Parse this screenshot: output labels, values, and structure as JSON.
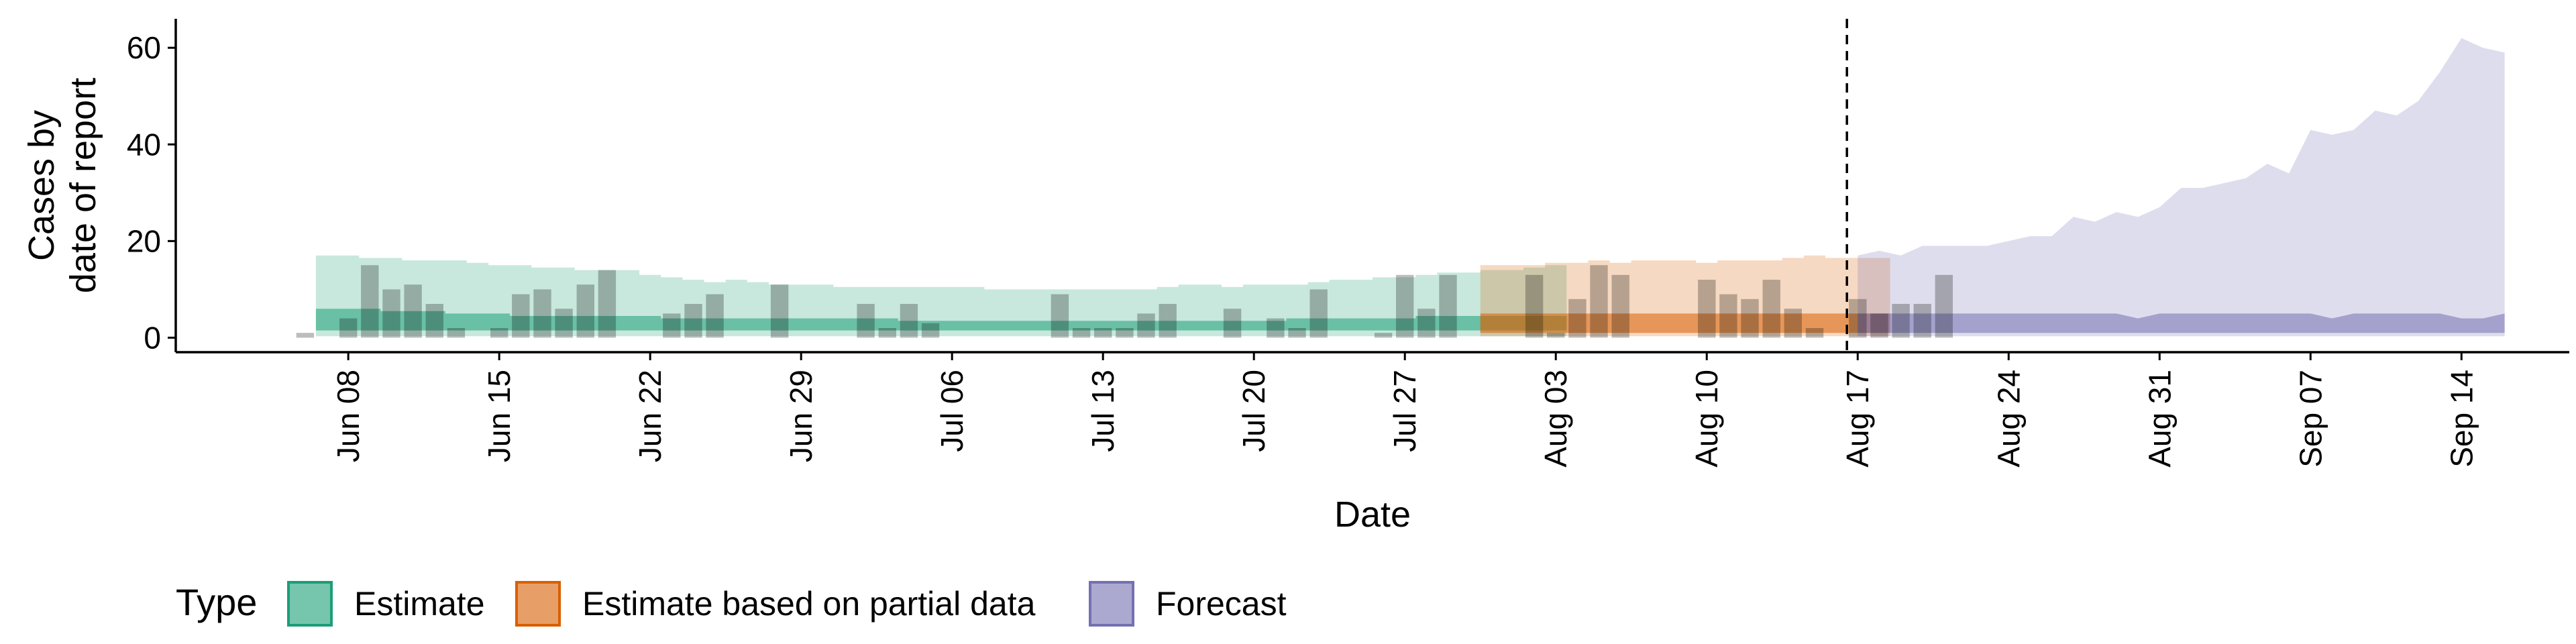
{
  "chart_data": {
    "type": "area",
    "xlabel": "Date",
    "ylabel_lines": [
      "Cases by",
      "date of report"
    ],
    "y_ticks": [
      0,
      20,
      40,
      60
    ],
    "ylim": [
      -3,
      66
    ],
    "xlim": [
      "2020-05-31",
      "2020-09-19"
    ],
    "x_ticks": [
      {
        "date": "2020-06-08",
        "label": "Jun 08"
      },
      {
        "date": "2020-06-15",
        "label": "Jun 15"
      },
      {
        "date": "2020-06-22",
        "label": "Jun 22"
      },
      {
        "date": "2020-06-29",
        "label": "Jun 29"
      },
      {
        "date": "2020-07-06",
        "label": "Jul 06"
      },
      {
        "date": "2020-07-13",
        "label": "Jul 13"
      },
      {
        "date": "2020-07-20",
        "label": "Jul 20"
      },
      {
        "date": "2020-07-27",
        "label": "Jul 27"
      },
      {
        "date": "2020-08-03",
        "label": "Aug 03"
      },
      {
        "date": "2020-08-10",
        "label": "Aug 10"
      },
      {
        "date": "2020-08-17",
        "label": "Aug 17"
      },
      {
        "date": "2020-08-24",
        "label": "Aug 24"
      },
      {
        "date": "2020-08-31",
        "label": "Aug 31"
      },
      {
        "date": "2020-09-07",
        "label": "Sep 07"
      },
      {
        "date": "2020-09-14",
        "label": "Sep 14"
      }
    ],
    "forecast_start_line": "2020-08-16",
    "grid": false,
    "legend": {
      "title": "Type",
      "position": "bottom",
      "entries": [
        {
          "label": "Estimate",
          "fill": "#1b9e77",
          "stroke": "#1b9e77"
        },
        {
          "label": "Estimate based on partial data",
          "fill": "#d95f02",
          "stroke": "#d95f02"
        },
        {
          "label": "Forecast",
          "fill": "#7570b3",
          "stroke": "#7570b3"
        }
      ]
    },
    "reported_cases": {
      "start_date": "2020-06-06",
      "values": [
        1,
        0,
        4,
        15,
        10,
        11,
        7,
        2,
        0,
        2,
        9,
        10,
        6,
        11,
        14,
        0,
        0,
        5,
        7,
        9,
        0,
        0,
        11,
        0,
        0,
        0,
        7,
        2,
        7,
        3,
        0,
        0,
        0,
        0,
        0,
        9,
        2,
        2,
        2,
        5,
        7,
        0,
        0,
        6,
        0,
        4,
        2,
        10,
        0,
        0,
        1,
        13,
        6,
        13,
        0,
        0,
        0,
        13,
        1,
        8,
        15,
        13,
        0,
        0,
        0,
        12,
        9,
        8,
        12,
        6,
        2,
        0,
        8,
        5,
        7,
        7,
        13
      ]
    },
    "series": [
      {
        "name": "Estimate",
        "color": "#1b9e77",
        "start_date": "2020-06-07",
        "upper_90": [
          17,
          17,
          16.5,
          16.5,
          16,
          16,
          16,
          15.5,
          15,
          15,
          14.5,
          14.5,
          14,
          14,
          14,
          13,
          12.5,
          12,
          11.5,
          12,
          11.5,
          11,
          11,
          11,
          10.5,
          10.5,
          10.5,
          10.5,
          10.5,
          10.5,
          10.5,
          10,
          10,
          10,
          10,
          10,
          10,
          10,
          10,
          10.5,
          11,
          11,
          10.5,
          11,
          11,
          11,
          11.5,
          12,
          12,
          12.5,
          12.5,
          13,
          13.5,
          13.5,
          14,
          14,
          14.5,
          15
        ],
        "lower_90": [
          0.3,
          0.3,
          0.3,
          0.3,
          0.3,
          0.3,
          0.3,
          0.3,
          0.3,
          0.3,
          0.3,
          0.3,
          0.3,
          0.3,
          0.3,
          0.3,
          0.3,
          0.3,
          0.3,
          0.3,
          0.3,
          0.3,
          0.3,
          0.3,
          0.3,
          0.3,
          0.3,
          0.3,
          0.3,
          0.3,
          0.3,
          0.3,
          0.3,
          0.3,
          0.3,
          0.3,
          0.3,
          0.3,
          0.3,
          0.3,
          0.3,
          0.3,
          0.3,
          0.3,
          0.3,
          0.3,
          0.3,
          0.3,
          0.3,
          0.3,
          0.3,
          0.3,
          0.3,
          0.3,
          0.3,
          0.3,
          0.3,
          0.3
        ],
        "upper_50": [
          6,
          6,
          6,
          5.5,
          5.5,
          5.5,
          5,
          5,
          5,
          4.5,
          4.5,
          4.5,
          4.5,
          4.5,
          4.5,
          4.5,
          4,
          4,
          4,
          4,
          4,
          4,
          4,
          4,
          4,
          4,
          4,
          3.5,
          3.5,
          3.5,
          3.5,
          3.5,
          3.5,
          3.5,
          3.5,
          3.5,
          3.5,
          3.5,
          3.5,
          3.5,
          3.5,
          3.5,
          3.5,
          3.5,
          3.5,
          4,
          4,
          4,
          4,
          4,
          4,
          4.5,
          4.5,
          4.5,
          4.5,
          4.5,
          4.5,
          4.5
        ],
        "lower_50": [
          1.5,
          1.5,
          1.5,
          1.5,
          1.5,
          1.5,
          1.5,
          1.5,
          1.5,
          1.5,
          1.5,
          1.5,
          1.5,
          1.5,
          1.5,
          1.5,
          1.5,
          1.5,
          1.5,
          1.5,
          1.5,
          1.5,
          1.5,
          1.5,
          1.5,
          1.5,
          1.5,
          1.5,
          1.5,
          1.5,
          1.5,
          1.5,
          1.5,
          1.5,
          1.5,
          1.5,
          1.5,
          1.5,
          1.5,
          1.5,
          1.5,
          1.5,
          1.5,
          1.5,
          1.5,
          1.5,
          1.5,
          1.5,
          1.5,
          1.5,
          1.5,
          1.5,
          1.5,
          1.5,
          1.5,
          1.5,
          1.5,
          1.5
        ]
      },
      {
        "name": "Estimate based on partial data",
        "color": "#d95f02",
        "start_date": "2020-07-31",
        "upper_90": [
          15,
          15,
          15,
          15.5,
          15.5,
          16,
          15.5,
          16,
          16,
          16,
          15.5,
          16,
          16,
          16,
          16.5,
          17,
          16.5,
          16.5,
          16.5
        ],
        "lower_90": [
          0.3,
          0.3,
          0.3,
          0.3,
          0.3,
          0.3,
          0.3,
          0.3,
          0.3,
          0.3,
          0.3,
          0.3,
          0.3,
          0.3,
          0.3,
          0.3,
          0.3,
          0.3,
          0.3
        ],
        "upper_50": [
          5,
          5,
          5,
          5,
          5,
          5,
          5,
          5,
          5,
          5,
          5,
          5,
          5,
          5,
          5,
          5,
          5,
          5,
          5
        ],
        "lower_50": [
          1,
          1,
          1,
          1,
          1,
          1,
          1,
          1,
          1,
          1,
          1,
          1,
          1,
          1,
          1,
          1,
          1,
          1,
          1
        ]
      },
      {
        "name": "Forecast",
        "color": "#7570b3",
        "start_date": "2020-08-17",
        "upper_90": [
          17,
          18,
          17,
          19,
          19,
          19,
          19,
          20,
          21,
          21,
          25,
          24,
          26,
          25,
          27,
          31,
          31,
          32,
          33,
          36,
          34,
          43,
          42,
          43,
          47,
          46,
          49,
          55,
          62,
          60,
          59
        ],
        "lower_90": [
          0.3,
          0.3,
          0.3,
          0.3,
          0.3,
          0.3,
          0.3,
          0.3,
          0.3,
          0.3,
          0.3,
          0.3,
          0.3,
          0.3,
          0.3,
          0.3,
          0.3,
          0.3,
          0.3,
          0.3,
          0.3,
          0.3,
          0.3,
          0.3,
          0.3,
          0.3,
          0.3,
          0.3,
          0.3,
          0.3,
          0.3
        ],
        "upper_50": [
          5,
          5,
          5,
          5,
          5,
          5,
          5,
          5,
          5,
          5,
          5,
          5,
          5,
          4,
          5,
          5,
          5,
          5,
          5,
          5,
          5,
          5,
          4,
          5,
          5,
          5,
          5,
          5,
          4,
          4,
          5
        ],
        "lower_50": [
          1,
          1,
          1,
          1,
          1,
          1,
          1,
          1,
          1,
          1,
          1,
          1,
          1,
          1,
          1,
          1,
          1,
          1,
          1,
          1,
          1,
          1,
          1,
          1,
          1,
          1,
          1,
          1,
          1,
          1,
          1
        ]
      }
    ]
  }
}
